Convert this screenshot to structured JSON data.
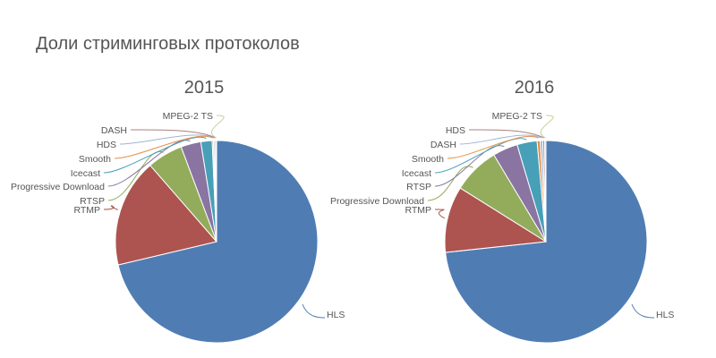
{
  "title": "Доли стриминговых протоколов",
  "chart_data": [
    {
      "type": "pie",
      "title": "2015",
      "unit": "percent (estimated)",
      "slices": [
        {
          "label": "HLS",
          "value": 71.3,
          "color": "#4f7db3"
        },
        {
          "label": "RTMP",
          "value": 17.3,
          "color": "#ad5450"
        },
        {
          "label": "RTSP",
          "value": 5.7,
          "color": "#92ac5c"
        },
        {
          "label": "Progressive Download",
          "value": 3.2,
          "color": "#8a74a2"
        },
        {
          "label": "Icecast",
          "value": 1.8,
          "color": "#479fb8"
        },
        {
          "label": "Smooth",
          "value": 0.2,
          "color": "#e38f45"
        },
        {
          "label": "HDS",
          "value": 0.2,
          "color": "#9fb3d6"
        },
        {
          "label": "DASH",
          "value": 0.2,
          "color": "#a88280"
        },
        {
          "label": "MPEG-2 TS",
          "value": 0.1,
          "color": "#c2d29e"
        }
      ]
    },
    {
      "type": "pie",
      "title": "2016",
      "unit": "percent (estimated)",
      "slices": [
        {
          "label": "HLS",
          "value": 73.3,
          "color": "#4f7db3"
        },
        {
          "label": "RTMP",
          "value": 10.6,
          "color": "#ad5450"
        },
        {
          "label": "Progressive Download",
          "value": 7.5,
          "color": "#92ac5c"
        },
        {
          "label": "RTSP",
          "value": 4.0,
          "color": "#8a74a2"
        },
        {
          "label": "Icecast",
          "value": 3.2,
          "color": "#479fb8"
        },
        {
          "label": "Smooth",
          "value": 0.5,
          "color": "#e38f45"
        },
        {
          "label": "DASH",
          "value": 0.4,
          "color": "#9fb3d6"
        },
        {
          "label": "HDS",
          "value": 0.3,
          "color": "#a88280"
        },
        {
          "label": "MPEG-2 TS",
          "value": 0.2,
          "color": "#c2d29e"
        }
      ]
    }
  ]
}
